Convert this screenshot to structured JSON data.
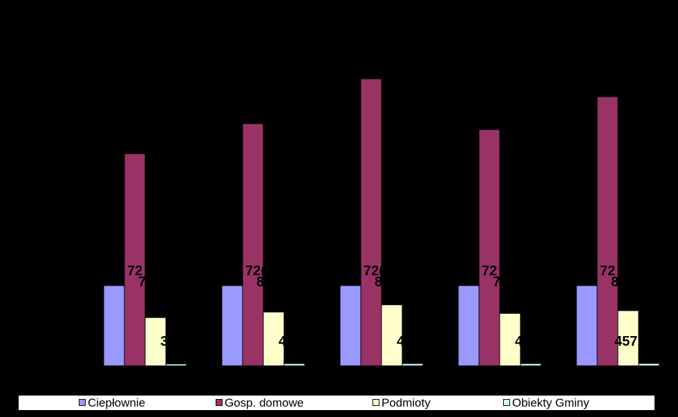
{
  "chart_data": {
    "type": "bar",
    "title": "",
    "xlabel": "",
    "ylabel": "",
    "categories": [
      "",
      "",
      "",
      "",
      ""
    ],
    "ylim": [
      0,
      9000
    ],
    "grid": false,
    "legend_position": "bottom",
    "series": [
      {
        "name": "Ciepłownie",
        "color": "#9999ff",
        "values": [
          2326,
          2326,
          2326,
          2326,
          2326
        ]
      },
      {
        "name": "Gosp. domowe",
        "color": "#993366",
        "values": [
          6150,
          7020,
          8320,
          6850,
          7800
        ]
      },
      {
        "name": "Podmioty",
        "color": "#ffffcc",
        "values": [
          1400,
          1560,
          1770,
          1520,
          1600
        ]
      },
      {
        "name": "Obiekty Gminy",
        "color": "#ccffff",
        "values": [
          55,
          65,
          65,
          65,
          70
        ]
      }
    ],
    "data_labels": [
      {
        "text": "72",
        "group": 0
      },
      {
        "text": "7",
        "group": 0
      },
      {
        "text": "72(",
        "group": 1
      },
      {
        "text": "8",
        "group": 1
      },
      {
        "text": "72(",
        "group": 2
      },
      {
        "text": "8",
        "group": 2
      },
      {
        "text": "72",
        "group": 3
      },
      {
        "text": "7",
        "group": 3
      },
      {
        "text": "72",
        "group": 4
      },
      {
        "text": "8 ",
        "group": 4
      },
      {
        "text": "3",
        "group": 0
      },
      {
        "text": "4",
        "group": 1
      },
      {
        "text": "4",
        "group": 2
      },
      {
        "text": "4",
        "group": 3
      },
      {
        "text": "457",
        "group": 4
      }
    ]
  },
  "legend": {
    "items": [
      {
        "label": "Ciepłownie",
        "color": "#9999ff"
      },
      {
        "label": "Gosp. domowe",
        "color": "#993366"
      },
      {
        "label": "Podmioty",
        "color": "#ffffcc"
      },
      {
        "label": "Obiekty Gminy",
        "color": "#ccffff"
      }
    ]
  }
}
